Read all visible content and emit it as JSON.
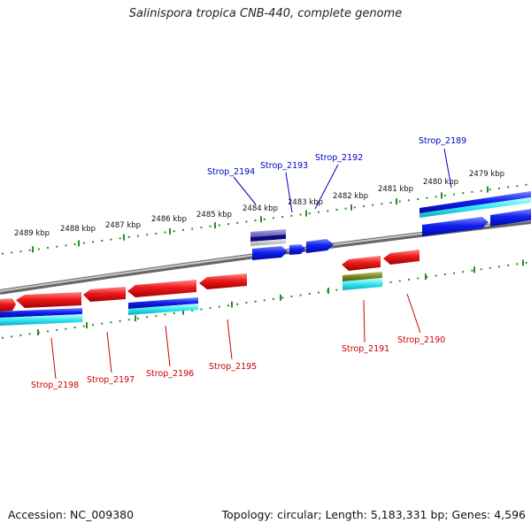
{
  "title": "Salinispora tropica CNB-440, complete genome",
  "footer": {
    "accession": "Accession: NC_009380",
    "stats": "Topology: circular; Length: 5,183,331 bp; Genes: 4,596"
  },
  "colors": {
    "forward_label": "#0000c0",
    "reverse_label": "#cc0000",
    "forward_gene": "#0a14e6",
    "reverse_gene": "#e61414",
    "tick": "#2a8a2a",
    "backbone": "#8a8a8a"
  },
  "tick_labels": [
    "2489 kbp",
    "2488 kbp",
    "2487 kbp",
    "2486 kbp",
    "2485 kbp",
    "2484 kbp",
    "2483 kbp",
    "2482 kbp",
    "2481 kbp",
    "2480 kbp",
    "2479 kbp"
  ],
  "forward_genes": [
    "Strop_2194",
    "Strop_2193",
    "Strop_2192",
    "Strop_2189"
  ],
  "reverse_genes": [
    "Strop_2198",
    "Strop_2197",
    "Strop_2196",
    "Strop_2195",
    "Strop_2191",
    "Strop_2190"
  ]
}
